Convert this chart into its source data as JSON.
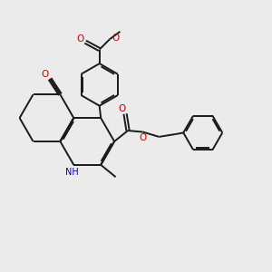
{
  "bg_color": "#ebebeb",
  "bond_color": "#1a1a1a",
  "o_color": "#cc0000",
  "n_color": "#0000cc",
  "line_width": 1.4,
  "dbo": 0.055,
  "figsize": [
    3.0,
    3.0
  ],
  "dpi": 100,
  "xlim": [
    0,
    10
  ],
  "ylim": [
    0,
    10
  ]
}
